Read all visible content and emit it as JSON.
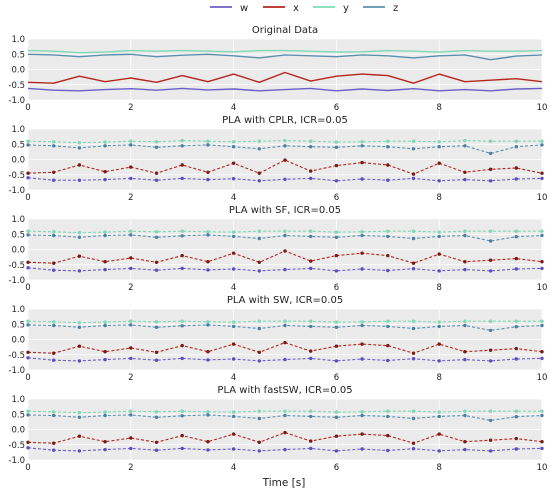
{
  "legend": {
    "placement": "top-center",
    "entries": [
      {
        "name": "w",
        "color": "#6b5fc7"
      },
      {
        "name": "x",
        "color": "#b5261e"
      },
      {
        "name": "y",
        "color": "#7fd9b4"
      },
      {
        "name": "z",
        "color": "#5b8fb0"
      }
    ]
  },
  "xlabel": "Time [s]",
  "colors": {
    "w": "#6b5fc7",
    "x": "#b5261e",
    "y": "#7fd9b4",
    "z": "#5b8fb0",
    "marker_x": "#7a1a12",
    "marker_w": "#5a4fc0",
    "marker_y": "#7fd9b4",
    "marker_z": "#4d7fa6",
    "panel_bg": "#ebebeb",
    "grid": "#ffffff"
  },
  "chart_data": [
    {
      "type": "line",
      "title": "Original Data",
      "xlim": [
        0,
        10
      ],
      "ylim": [
        -1.0,
        1.0
      ],
      "xticks": [
        "0",
        "2",
        "4",
        "6",
        "8",
        "10"
      ],
      "yticks": [
        "1.0",
        "0.5",
        "0.0",
        "-0.5",
        "-1.0"
      ],
      "grid": true,
      "x": [
        0,
        0.5,
        1,
        1.5,
        2,
        2.5,
        3,
        3.5,
        4,
        4.5,
        5,
        5.5,
        6,
        6.5,
        7,
        7.5,
        8,
        8.5,
        9,
        9.5,
        10
      ],
      "series": [
        {
          "name": "w",
          "values": [
            -0.62,
            -0.68,
            -0.7,
            -0.66,
            -0.63,
            -0.68,
            -0.62,
            -0.67,
            -0.64,
            -0.7,
            -0.66,
            -0.62,
            -0.7,
            -0.64,
            -0.69,
            -0.63,
            -0.7,
            -0.66,
            -0.7,
            -0.64,
            -0.62
          ]
        },
        {
          "name": "x",
          "values": [
            -0.42,
            -0.45,
            -0.22,
            -0.4,
            -0.28,
            -0.42,
            -0.2,
            -0.4,
            -0.15,
            -0.42,
            -0.1,
            -0.38,
            -0.22,
            -0.15,
            -0.2,
            -0.45,
            -0.15,
            -0.4,
            -0.35,
            -0.3,
            -0.4
          ]
        },
        {
          "name": "y",
          "values": [
            0.62,
            0.6,
            0.55,
            0.57,
            0.62,
            0.6,
            0.62,
            0.6,
            0.58,
            0.62,
            0.62,
            0.6,
            0.57,
            0.58,
            0.62,
            0.6,
            0.57,
            0.62,
            0.6,
            0.6,
            0.62
          ]
        },
        {
          "name": "z",
          "values": [
            0.5,
            0.48,
            0.42,
            0.48,
            0.5,
            0.42,
            0.47,
            0.5,
            0.45,
            0.38,
            0.48,
            0.45,
            0.42,
            0.48,
            0.45,
            0.38,
            0.45,
            0.48,
            0.32,
            0.44,
            0.48
          ]
        }
      ]
    },
    {
      "type": "line",
      "title": "PLA with CPLR, ICR=0.05",
      "xlim": [
        0,
        10
      ],
      "ylim": [
        -1.0,
        1.0
      ],
      "xticks": [
        "0",
        "2",
        "4",
        "6",
        "8",
        "10"
      ],
      "yticks": [
        "1.0",
        "0.5",
        "0.0",
        "-0.5",
        "-1.0"
      ],
      "grid": true,
      "x": [
        0,
        0.5,
        1,
        1.5,
        2,
        2.5,
        3,
        3.5,
        4,
        4.5,
        5,
        5.5,
        6,
        6.5,
        7,
        7.5,
        8,
        8.5,
        9,
        9.5,
        10
      ],
      "series": [
        {
          "name": "w",
          "values": [
            -0.6,
            -0.68,
            -0.68,
            -0.66,
            -0.62,
            -0.68,
            -0.62,
            -0.66,
            -0.63,
            -0.7,
            -0.65,
            -0.62,
            -0.7,
            -0.64,
            -0.68,
            -0.62,
            -0.7,
            -0.66,
            -0.7,
            -0.64,
            -0.62
          ]
        },
        {
          "name": "x",
          "values": [
            -0.45,
            -0.42,
            -0.18,
            -0.4,
            -0.25,
            -0.45,
            -0.18,
            -0.42,
            -0.12,
            -0.45,
            -0.02,
            -0.38,
            -0.2,
            -0.1,
            -0.18,
            -0.48,
            -0.12,
            -0.42,
            -0.32,
            -0.28,
            -0.45
          ]
        },
        {
          "name": "y",
          "values": [
            0.6,
            0.58,
            0.55,
            0.57,
            0.6,
            0.58,
            0.62,
            0.6,
            0.58,
            0.6,
            0.62,
            0.6,
            0.57,
            0.58,
            0.6,
            0.6,
            0.58,
            0.62,
            0.6,
            0.6,
            0.6
          ]
        },
        {
          "name": "z",
          "values": [
            0.48,
            0.45,
            0.38,
            0.45,
            0.48,
            0.4,
            0.45,
            0.48,
            0.42,
            0.35,
            0.45,
            0.42,
            0.4,
            0.45,
            0.42,
            0.35,
            0.42,
            0.45,
            0.2,
            0.42,
            0.48
          ]
        }
      ]
    },
    {
      "type": "line",
      "title": "PLA with SF, ICR=0.05",
      "xlim": [
        0,
        10
      ],
      "ylim": [
        -1.0,
        1.0
      ],
      "xticks": [
        "0",
        "2",
        "4",
        "6",
        "8",
        "10"
      ],
      "yticks": [
        "1.0",
        "0.5",
        "0.0",
        "-0.5",
        "-1.0"
      ],
      "grid": true,
      "x": [
        0,
        0.5,
        1,
        1.5,
        2,
        2.5,
        3,
        3.5,
        4,
        4.5,
        5,
        5.5,
        6,
        6.5,
        7,
        7.5,
        8,
        8.5,
        9,
        9.5,
        10
      ],
      "series": [
        {
          "name": "w",
          "values": [
            -0.6,
            -0.68,
            -0.7,
            -0.66,
            -0.62,
            -0.68,
            -0.62,
            -0.67,
            -0.64,
            -0.7,
            -0.66,
            -0.62,
            -0.7,
            -0.64,
            -0.69,
            -0.63,
            -0.7,
            -0.66,
            -0.7,
            -0.64,
            -0.62
          ]
        },
        {
          "name": "x",
          "values": [
            -0.42,
            -0.45,
            -0.22,
            -0.4,
            -0.28,
            -0.42,
            -0.2,
            -0.4,
            -0.12,
            -0.42,
            -0.05,
            -0.38,
            -0.2,
            -0.12,
            -0.2,
            -0.45,
            -0.15,
            -0.4,
            -0.35,
            -0.3,
            -0.4
          ]
        },
        {
          "name": "y",
          "values": [
            0.6,
            0.58,
            0.55,
            0.57,
            0.6,
            0.58,
            0.6,
            0.58,
            0.57,
            0.6,
            0.6,
            0.6,
            0.57,
            0.58,
            0.6,
            0.6,
            0.57,
            0.6,
            0.6,
            0.6,
            0.6
          ]
        },
        {
          "name": "z",
          "values": [
            0.48,
            0.46,
            0.4,
            0.46,
            0.48,
            0.4,
            0.45,
            0.48,
            0.43,
            0.36,
            0.46,
            0.43,
            0.4,
            0.46,
            0.43,
            0.36,
            0.43,
            0.46,
            0.28,
            0.42,
            0.46
          ]
        }
      ]
    },
    {
      "type": "line",
      "title": "PLA with SW, ICR=0.05",
      "xlim": [
        0,
        10
      ],
      "ylim": [
        -1.0,
        1.0
      ],
      "xticks": [
        "0",
        "2",
        "4",
        "6",
        "8",
        "10"
      ],
      "yticks": [
        "1.0",
        "0.5",
        "0.0",
        "-0.5",
        "-1.0"
      ],
      "grid": true,
      "x": [
        0,
        0.5,
        1,
        1.5,
        2,
        2.5,
        3,
        3.5,
        4,
        4.5,
        5,
        5.5,
        6,
        6.5,
        7,
        7.5,
        8,
        8.5,
        9,
        9.5,
        10
      ],
      "series": [
        {
          "name": "w",
          "values": [
            -0.6,
            -0.68,
            -0.7,
            -0.66,
            -0.62,
            -0.68,
            -0.62,
            -0.67,
            -0.64,
            -0.7,
            -0.66,
            -0.62,
            -0.7,
            -0.64,
            -0.69,
            -0.63,
            -0.7,
            -0.66,
            -0.7,
            -0.64,
            -0.62
          ]
        },
        {
          "name": "x",
          "values": [
            -0.42,
            -0.45,
            -0.22,
            -0.4,
            -0.28,
            -0.42,
            -0.2,
            -0.4,
            -0.15,
            -0.42,
            -0.1,
            -0.38,
            -0.22,
            -0.15,
            -0.2,
            -0.45,
            -0.15,
            -0.4,
            -0.35,
            -0.3,
            -0.4
          ]
        },
        {
          "name": "y",
          "values": [
            0.6,
            0.58,
            0.55,
            0.57,
            0.6,
            0.58,
            0.6,
            0.58,
            0.57,
            0.6,
            0.6,
            0.6,
            0.57,
            0.58,
            0.6,
            0.6,
            0.57,
            0.6,
            0.6,
            0.6,
            0.6
          ]
        },
        {
          "name": "z",
          "values": [
            0.48,
            0.46,
            0.4,
            0.46,
            0.48,
            0.4,
            0.45,
            0.48,
            0.43,
            0.36,
            0.46,
            0.43,
            0.4,
            0.46,
            0.43,
            0.36,
            0.43,
            0.46,
            0.3,
            0.42,
            0.46
          ]
        }
      ]
    },
    {
      "type": "line",
      "title": "PLA with fastSW, ICR=0.05",
      "xlim": [
        0,
        10
      ],
      "ylim": [
        -1.0,
        1.0
      ],
      "xticks": [
        "0",
        "2",
        "4",
        "6",
        "8",
        "10"
      ],
      "yticks": [
        "1.0",
        "0.5",
        "0.0",
        "-0.5",
        "-1.0"
      ],
      "grid": true,
      "x": [
        0,
        0.5,
        1,
        1.5,
        2,
        2.5,
        3,
        3.5,
        4,
        4.5,
        5,
        5.5,
        6,
        6.5,
        7,
        7.5,
        8,
        8.5,
        9,
        9.5,
        10
      ],
      "series": [
        {
          "name": "w",
          "values": [
            -0.6,
            -0.68,
            -0.7,
            -0.66,
            -0.62,
            -0.68,
            -0.62,
            -0.67,
            -0.64,
            -0.7,
            -0.66,
            -0.62,
            -0.7,
            -0.64,
            -0.69,
            -0.63,
            -0.7,
            -0.66,
            -0.7,
            -0.64,
            -0.62
          ]
        },
        {
          "name": "x",
          "values": [
            -0.42,
            -0.45,
            -0.22,
            -0.4,
            -0.28,
            -0.42,
            -0.2,
            -0.4,
            -0.15,
            -0.42,
            -0.1,
            -0.38,
            -0.22,
            -0.15,
            -0.2,
            -0.45,
            -0.15,
            -0.4,
            -0.35,
            -0.3,
            -0.4
          ]
        },
        {
          "name": "y",
          "values": [
            0.6,
            0.58,
            0.55,
            0.57,
            0.6,
            0.58,
            0.6,
            0.58,
            0.57,
            0.6,
            0.6,
            0.6,
            0.57,
            0.58,
            0.6,
            0.6,
            0.57,
            0.6,
            0.6,
            0.6,
            0.6
          ]
        },
        {
          "name": "z",
          "values": [
            0.48,
            0.46,
            0.4,
            0.46,
            0.48,
            0.4,
            0.45,
            0.48,
            0.43,
            0.36,
            0.46,
            0.43,
            0.4,
            0.46,
            0.43,
            0.36,
            0.43,
            0.46,
            0.3,
            0.42,
            0.46
          ]
        }
      ]
    }
  ]
}
